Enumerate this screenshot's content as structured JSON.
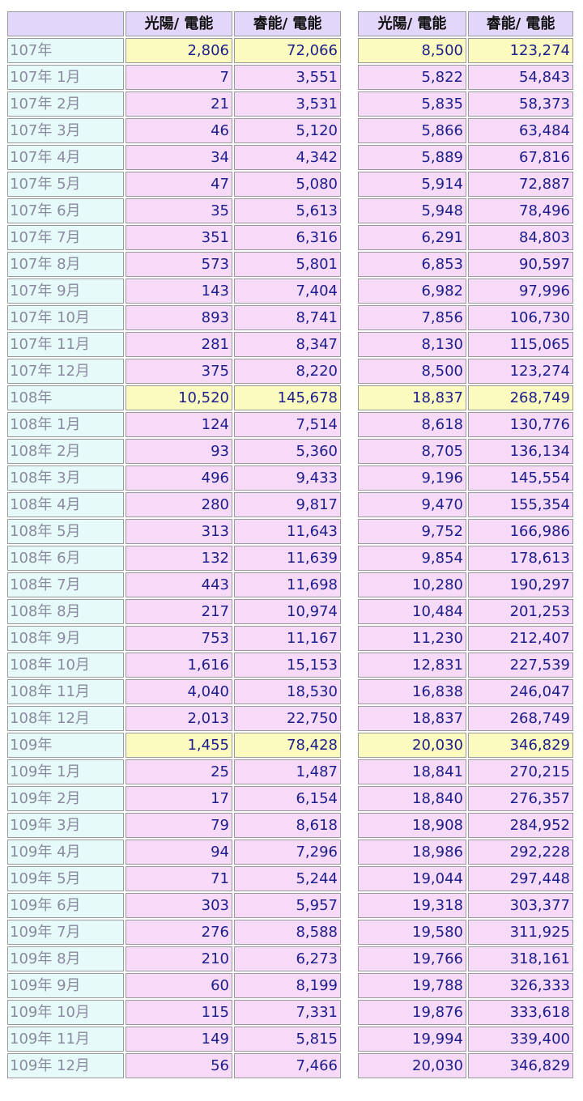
{
  "headers": {
    "col1": "光陽/ 電能",
    "col2": "睿能/ 電能"
  },
  "rows": [
    {
      "label": "107年",
      "year": true,
      "a": "2,806",
      "b": "72,066",
      "c": "8,500",
      "d": "123,274"
    },
    {
      "label": "107年 1月",
      "year": false,
      "a": "7",
      "b": "3,551",
      "c": "5,822",
      "d": "54,843"
    },
    {
      "label": "107年 2月",
      "year": false,
      "a": "21",
      "b": "3,531",
      "c": "5,835",
      "d": "58,373"
    },
    {
      "label": "107年 3月",
      "year": false,
      "a": "46",
      "b": "5,120",
      "c": "5,866",
      "d": "63,484"
    },
    {
      "label": "107年 4月",
      "year": false,
      "a": "34",
      "b": "4,342",
      "c": "5,889",
      "d": "67,816"
    },
    {
      "label": "107年 5月",
      "year": false,
      "a": "47",
      "b": "5,080",
      "c": "5,914",
      "d": "72,887"
    },
    {
      "label": "107年 6月",
      "year": false,
      "a": "35",
      "b": "5,613",
      "c": "5,948",
      "d": "78,496"
    },
    {
      "label": "107年 7月",
      "year": false,
      "a": "351",
      "b": "6,316",
      "c": "6,291",
      "d": "84,803"
    },
    {
      "label": "107年 8月",
      "year": false,
      "a": "573",
      "b": "5,801",
      "c": "6,853",
      "d": "90,597"
    },
    {
      "label": "107年 9月",
      "year": false,
      "a": "143",
      "b": "7,404",
      "c": "6,982",
      "d": "97,996"
    },
    {
      "label": "107年 10月",
      "year": false,
      "a": "893",
      "b": "8,741",
      "c": "7,856",
      "d": "106,730"
    },
    {
      "label": "107年 11月",
      "year": false,
      "a": "281",
      "b": "8,347",
      "c": "8,130",
      "d": "115,065"
    },
    {
      "label": "107年 12月",
      "year": false,
      "a": "375",
      "b": "8,220",
      "c": "8,500",
      "d": "123,274"
    },
    {
      "label": "108年",
      "year": true,
      "a": "10,520",
      "b": "145,678",
      "c": "18,837",
      "d": "268,749"
    },
    {
      "label": "108年 1月",
      "year": false,
      "a": "124",
      "b": "7,514",
      "c": "8,618",
      "d": "130,776"
    },
    {
      "label": "108年 2月",
      "year": false,
      "a": "93",
      "b": "5,360",
      "c": "8,705",
      "d": "136,134"
    },
    {
      "label": "108年 3月",
      "year": false,
      "a": "496",
      "b": "9,433",
      "c": "9,196",
      "d": "145,554"
    },
    {
      "label": "108年 4月",
      "year": false,
      "a": "280",
      "b": "9,817",
      "c": "9,470",
      "d": "155,354"
    },
    {
      "label": "108年 5月",
      "year": false,
      "a": "313",
      "b": "11,643",
      "c": "9,752",
      "d": "166,986"
    },
    {
      "label": "108年 6月",
      "year": false,
      "a": "132",
      "b": "11,639",
      "c": "9,854",
      "d": "178,613"
    },
    {
      "label": "108年 7月",
      "year": false,
      "a": "443",
      "b": "11,698",
      "c": "10,280",
      "d": "190,297"
    },
    {
      "label": "108年 8月",
      "year": false,
      "a": "217",
      "b": "10,974",
      "c": "10,484",
      "d": "201,253"
    },
    {
      "label": "108年 9月",
      "year": false,
      "a": "753",
      "b": "11,167",
      "c": "11,230",
      "d": "212,407"
    },
    {
      "label": "108年 10月",
      "year": false,
      "a": "1,616",
      "b": "15,153",
      "c": "12,831",
      "d": "227,539"
    },
    {
      "label": "108年 11月",
      "year": false,
      "a": "4,040",
      "b": "18,530",
      "c": "16,838",
      "d": "246,047"
    },
    {
      "label": "108年 12月",
      "year": false,
      "a": "2,013",
      "b": "22,750",
      "c": "18,837",
      "d": "268,749"
    },
    {
      "label": "109年",
      "year": true,
      "a": "1,455",
      "b": "78,428",
      "c": "20,030",
      "d": "346,829"
    },
    {
      "label": "109年 1月",
      "year": false,
      "a": "25",
      "b": "1,487",
      "c": "18,841",
      "d": "270,215"
    },
    {
      "label": "109年 2月",
      "year": false,
      "a": "17",
      "b": "6,154",
      "c": "18,840",
      "d": "276,357"
    },
    {
      "label": "109年 3月",
      "year": false,
      "a": "79",
      "b": "8,618",
      "c": "18,908",
      "d": "284,952"
    },
    {
      "label": "109年 4月",
      "year": false,
      "a": "94",
      "b": "7,296",
      "c": "18,986",
      "d": "292,228"
    },
    {
      "label": "109年 5月",
      "year": false,
      "a": "71",
      "b": "5,244",
      "c": "19,044",
      "d": "297,448"
    },
    {
      "label": "109年 6月",
      "year": false,
      "a": "303",
      "b": "5,957",
      "c": "19,318",
      "d": "303,377"
    },
    {
      "label": "109年 7月",
      "year": false,
      "a": "276",
      "b": "8,588",
      "c": "19,580",
      "d": "311,925"
    },
    {
      "label": "109年 8月",
      "year": false,
      "a": "210",
      "b": "6,273",
      "c": "19,766",
      "d": "318,161"
    },
    {
      "label": "109年 9月",
      "year": false,
      "a": "60",
      "b": "8,199",
      "c": "19,788",
      "d": "326,333"
    },
    {
      "label": "109年 10月",
      "year": false,
      "a": "115",
      "b": "7,331",
      "c": "19,876",
      "d": "333,618"
    },
    {
      "label": "109年 11月",
      "year": false,
      "a": "149",
      "b": "5,815",
      "c": "19,994",
      "d": "339,400"
    },
    {
      "label": "109年 12月",
      "year": false,
      "a": "56",
      "b": "7,466",
      "c": "20,030",
      "d": "346,829"
    }
  ]
}
